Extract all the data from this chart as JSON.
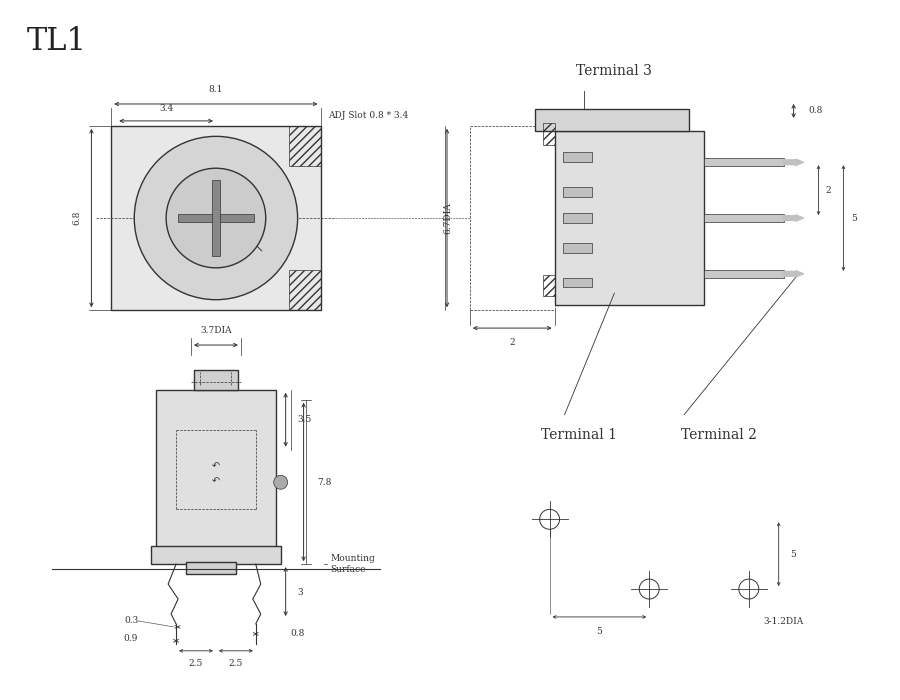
{
  "title": "TL1",
  "bg_color": "#f0f0f0",
  "line_color": "#333333",
  "dim_color": "#333333",
  "hatch_color": "#555555",
  "annotations": {
    "terminal3": "Terminal 3",
    "terminal1": "Terminal 1",
    "terminal2": "Terminal 2",
    "adj_slot": "ADJ Slot 0.8 * 3.4",
    "mounting": "Mounting\nSurface",
    "tl1": "TL1"
  },
  "dims": {
    "top_width": "8.1",
    "adj_width": "3.4",
    "height": "6.8",
    "side_height": "6.7DIA",
    "side_dim1": "2",
    "side_dim2": "5",
    "side_dim3": "0.8",
    "bot_dia": "3.7DIA",
    "bot_h1": "3.5",
    "bot_h2": "7.8",
    "bot_h3": "3.5",
    "bot_h4": "3",
    "bot_w1": "0.3",
    "bot_w2": "0.9",
    "bot_w3": "2.5",
    "bot_w4": "2.5",
    "bot_w5": "0.8",
    "side2_dim1": "5",
    "side2_dim2": "5",
    "side2_dim3": "3-1.2DIA"
  }
}
